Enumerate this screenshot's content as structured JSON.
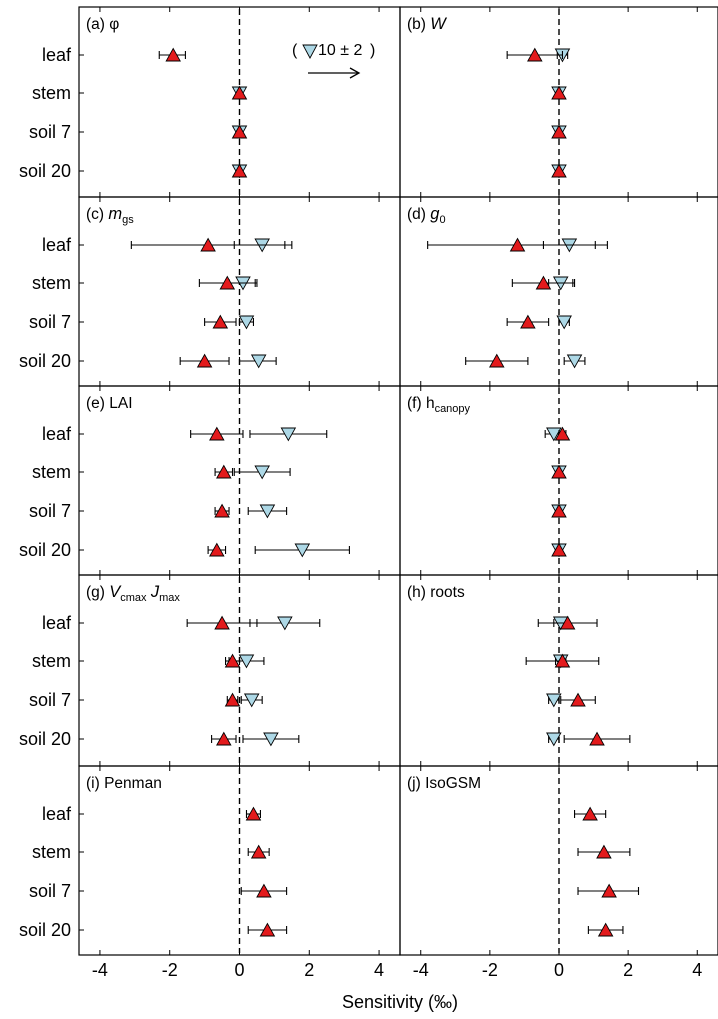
{
  "chart_data": {
    "type": "scatter",
    "xlabel": "Sensitivity (‰)",
    "xlim": [
      -4.6,
      4.6
    ],
    "xticks": [
      -4,
      -2,
      0,
      2,
      4
    ],
    "categories": [
      "leaf",
      "stem",
      "soil 7",
      "soil 20"
    ],
    "legend": {
      "text": "10 ± 2"
    },
    "colors": {
      "up_marker": "#e31a1c",
      "down_marker": "#add8e6"
    },
    "panels": [
      {
        "id": "a",
        "prefix": "(a) ",
        "name": "φ",
        "italic": false,
        "sub": "",
        "mid": "",
        "name2": "",
        "sub2": "",
        "up": [
          {
            "v": -1.9,
            "lo": -2.3,
            "hi": -1.55
          },
          {
            "v": 0,
            "lo": 0,
            "hi": 0
          },
          {
            "v": 0,
            "lo": 0,
            "hi": 0
          },
          {
            "v": 0,
            "lo": 0,
            "hi": 0
          }
        ],
        "down": [
          null,
          {
            "v": 0,
            "lo": 0,
            "hi": 0
          },
          {
            "v": 0,
            "lo": 0,
            "hi": 0
          },
          {
            "v": 0,
            "lo": 0,
            "hi": 0
          }
        ]
      },
      {
        "id": "b",
        "prefix": "(b) ",
        "name": "W",
        "italic": true,
        "sub": "",
        "mid": "",
        "name2": "",
        "sub2": "",
        "up": [
          {
            "v": -0.7,
            "lo": -1.5,
            "hi": 0.1
          },
          {
            "v": 0,
            "lo": 0,
            "hi": 0
          },
          {
            "v": 0,
            "lo": 0,
            "hi": 0
          },
          {
            "v": 0,
            "lo": 0,
            "hi": 0
          }
        ],
        "down": [
          {
            "v": 0.1,
            "lo": -0.05,
            "hi": 0.25
          },
          {
            "v": 0,
            "lo": 0,
            "hi": 0
          },
          {
            "v": 0,
            "lo": 0,
            "hi": 0
          },
          {
            "v": 0,
            "lo": 0,
            "hi": 0
          }
        ]
      },
      {
        "id": "c",
        "prefix": "(c) ",
        "name": "m",
        "italic": true,
        "sub": "gs",
        "mid": "",
        "name2": "",
        "sub2": "",
        "up": [
          {
            "v": -0.9,
            "lo": -3.1,
            "hi": 1.3
          },
          {
            "v": -0.35,
            "lo": -1.15,
            "hi": 0.45
          },
          {
            "v": -0.55,
            "lo": -1.0,
            "hi": -0.1
          },
          {
            "v": -1.0,
            "lo": -1.7,
            "hi": -0.3
          }
        ],
        "down": [
          {
            "v": 0.65,
            "lo": -0.15,
            "hi": 1.5
          },
          {
            "v": 0.1,
            "lo": -0.3,
            "hi": 0.5
          },
          {
            "v": 0.2,
            "lo": 0.0,
            "hi": 0.4
          },
          {
            "v": 0.55,
            "lo": 0.0,
            "hi": 1.05
          }
        ]
      },
      {
        "id": "d",
        "prefix": "(d) ",
        "name": "g",
        "italic": true,
        "sub": "0",
        "mid": "",
        "name2": "",
        "sub2": "",
        "up": [
          {
            "v": -1.2,
            "lo": -3.8,
            "hi": 1.4
          },
          {
            "v": -0.45,
            "lo": -1.35,
            "hi": 0.45
          },
          {
            "v": -0.9,
            "lo": -1.5,
            "hi": -0.3
          },
          {
            "v": -1.8,
            "lo": -2.7,
            "hi": -0.9
          }
        ],
        "down": [
          {
            "v": 0.3,
            "lo": -0.45,
            "hi": 1.05
          },
          {
            "v": 0.05,
            "lo": -0.3,
            "hi": 0.4
          },
          {
            "v": 0.15,
            "lo": 0.0,
            "hi": 0.3
          },
          {
            "v": 0.45,
            "lo": 0.15,
            "hi": 0.75
          }
        ]
      },
      {
        "id": "e",
        "prefix": "(e) ",
        "name": "LAI",
        "italic": false,
        "sub": "",
        "mid": "",
        "name2": "",
        "sub2": "",
        "up": [
          {
            "v": -0.65,
            "lo": -1.4,
            "hi": 0.1
          },
          {
            "v": -0.45,
            "lo": -0.7,
            "hi": -0.2
          },
          {
            "v": -0.5,
            "lo": -0.7,
            "hi": -0.3
          },
          {
            "v": -0.65,
            "lo": -0.9,
            "hi": -0.4
          }
        ],
        "down": [
          {
            "v": 1.4,
            "lo": 0.3,
            "hi": 2.5
          },
          {
            "v": 0.65,
            "lo": -0.15,
            "hi": 1.45
          },
          {
            "v": 0.8,
            "lo": 0.25,
            "hi": 1.35
          },
          {
            "v": 1.8,
            "lo": 0.45,
            "hi": 3.15
          }
        ]
      },
      {
        "id": "f",
        "prefix": "(f) ",
        "name": "h",
        "italic": false,
        "sub": "canopy",
        "mid": "",
        "name2": "",
        "sub2": "",
        "up": [
          {
            "v": 0.1,
            "lo": 0.0,
            "hi": 0.2
          },
          {
            "v": 0,
            "lo": 0,
            "hi": 0
          },
          {
            "v": 0,
            "lo": 0,
            "hi": 0
          },
          {
            "v": 0,
            "lo": 0,
            "hi": 0
          }
        ],
        "down": [
          {
            "v": -0.15,
            "lo": -0.4,
            "hi": 0.1
          },
          {
            "v": 0,
            "lo": 0,
            "hi": 0
          },
          {
            "v": 0,
            "lo": 0,
            "hi": 0
          },
          {
            "v": 0,
            "lo": 0,
            "hi": 0
          }
        ]
      },
      {
        "id": "g",
        "prefix": "(g) ",
        "name": "V",
        "italic": true,
        "sub": "cmax",
        "mid": " ",
        "name2": "J",
        "sub2": "max",
        "up": [
          {
            "v": -0.5,
            "lo": -1.5,
            "hi": 0.5
          },
          {
            "v": -0.2,
            "lo": -0.4,
            "hi": 0.0
          },
          {
            "v": -0.2,
            "lo": -0.35,
            "hi": -0.05
          },
          {
            "v": -0.45,
            "lo": -0.8,
            "hi": -0.1
          }
        ],
        "down": [
          {
            "v": 1.3,
            "lo": 0.3,
            "hi": 2.3
          },
          {
            "v": 0.2,
            "lo": -0.3,
            "hi": 0.7
          },
          {
            "v": 0.35,
            "lo": 0.05,
            "hi": 0.65
          },
          {
            "v": 0.9,
            "lo": 0.1,
            "hi": 1.7
          }
        ]
      },
      {
        "id": "h",
        "prefix": "(h) ",
        "name": "roots",
        "italic": false,
        "sub": "",
        "mid": "",
        "name2": "",
        "sub2": "",
        "up": [
          {
            "v": 0.25,
            "lo": -0.6,
            "hi": 1.1
          },
          {
            "v": 0.1,
            "lo": -0.95,
            "hi": 1.15
          },
          {
            "v": 0.55,
            "lo": 0.05,
            "hi": 1.05
          },
          {
            "v": 1.1,
            "lo": 0.15,
            "hi": 2.05
          }
        ],
        "down": [
          {
            "v": 0.05,
            "lo": -0.15,
            "hi": 0.25
          },
          {
            "v": 0.05,
            "lo": -0.1,
            "hi": 0.2
          },
          {
            "v": -0.15,
            "lo": -0.3,
            "hi": 0.0
          },
          {
            "v": -0.15,
            "lo": -0.3,
            "hi": 0.0
          }
        ]
      },
      {
        "id": "i",
        "prefix": "(i) ",
        "name": "Penman",
        "italic": false,
        "sub": "",
        "mid": "",
        "name2": "",
        "sub2": "",
        "up": [
          {
            "v": 0.4,
            "lo": 0.2,
            "hi": 0.6
          },
          {
            "v": 0.55,
            "lo": 0.25,
            "hi": 0.85
          },
          {
            "v": 0.7,
            "lo": 0.05,
            "hi": 1.35
          },
          {
            "v": 0.8,
            "lo": 0.25,
            "hi": 1.35
          }
        ],
        "down": []
      },
      {
        "id": "j",
        "prefix": "(j) ",
        "name": "IsoGSM",
        "italic": false,
        "sub": "",
        "mid": "",
        "name2": "",
        "sub2": "",
        "up": [
          {
            "v": 0.9,
            "lo": 0.45,
            "hi": 1.35
          },
          {
            "v": 1.3,
            "lo": 0.55,
            "hi": 2.05
          },
          {
            "v": 1.45,
            "lo": 0.55,
            "hi": 2.3
          },
          {
            "v": 1.35,
            "lo": 0.85,
            "hi": 1.85
          }
        ],
        "down": []
      }
    ]
  }
}
